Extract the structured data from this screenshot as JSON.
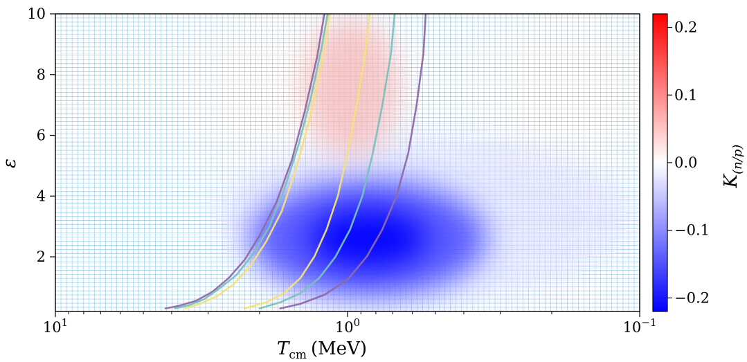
{
  "chart_data": {
    "type": "heatmap",
    "title": "",
    "xlabel": {
      "symbol": "T",
      "subscript": "cm",
      "unit": "(MeV)"
    },
    "ylabel": "ε",
    "x_scale": "log",
    "x_direction": "decreasing",
    "xlim": [
      10,
      0.1
    ],
    "ylim": [
      0.2,
      10
    ],
    "x_ticks": [
      {
        "value": 10,
        "base": "10",
        "exp": "1"
      },
      {
        "value": 1,
        "base": "10",
        "exp": "0"
      },
      {
        "value": 0.1,
        "base": "10",
        "exp": "−1"
      }
    ],
    "y_ticks": [
      {
        "value": 2,
        "label": "2"
      },
      {
        "value": 4,
        "label": "4"
      },
      {
        "value": 6,
        "label": "6"
      },
      {
        "value": 8,
        "label": "8"
      },
      {
        "value": 10,
        "label": "10"
      }
    ],
    "grid": true,
    "grid_color": "#8ec4e2",
    "colorbar": {
      "label": {
        "symbol": "K",
        "subscript": "(n/p)"
      },
      "range": [
        -0.22,
        0.22
      ],
      "colormap": "bwr",
      "ticks": [
        {
          "value": 0.2,
          "label": "0.2"
        },
        {
          "value": 0.1,
          "label": "0.1"
        },
        {
          "value": 0.0,
          "label": "0.0"
        },
        {
          "value": -0.1,
          "label": "−0.1"
        },
        {
          "value": -0.2,
          "label": "−0.2"
        }
      ]
    },
    "heatmap_features": [
      {
        "kind": "negative",
        "peak": -0.22,
        "center_T": 0.85,
        "center_eps": 2.6
      },
      {
        "kind": "positive",
        "peak": 0.07,
        "center_T": 0.97,
        "center_eps": 7.0
      }
    ],
    "series": [
      {
        "color": "#8e6aa8",
        "points": [
          [
            4.2,
            0.3
          ],
          [
            3.8,
            0.38
          ],
          [
            3.3,
            0.55
          ],
          [
            2.9,
            0.85
          ],
          [
            2.55,
            1.3
          ],
          [
            2.25,
            1.9
          ],
          [
            2.0,
            2.7
          ],
          [
            1.75,
            3.8
          ],
          [
            1.55,
            5.2
          ],
          [
            1.4,
            6.8
          ],
          [
            1.27,
            8.6
          ],
          [
            1.2,
            10
          ]
        ]
      },
      {
        "color": "#79c2bd",
        "points": [
          [
            3.9,
            0.3
          ],
          [
            3.5,
            0.4
          ],
          [
            3.1,
            0.6
          ],
          [
            2.75,
            0.95
          ],
          [
            2.4,
            1.4
          ],
          [
            2.1,
            2.1
          ],
          [
            1.85,
            3.0
          ],
          [
            1.65,
            4.2
          ],
          [
            1.47,
            5.7
          ],
          [
            1.33,
            7.3
          ],
          [
            1.22,
            9.0
          ],
          [
            1.17,
            10
          ]
        ]
      },
      {
        "color": "#f2e27a",
        "points": [
          [
            2.25,
            0.3
          ],
          [
            1.9,
            0.5
          ],
          [
            1.65,
            0.8
          ],
          [
            1.45,
            1.3
          ],
          [
            1.3,
            2.0
          ],
          [
            1.18,
            2.9
          ],
          [
            1.08,
            4.0
          ],
          [
            1.0,
            5.4
          ],
          [
            0.93,
            7.0
          ],
          [
            0.87,
            8.7
          ],
          [
            0.84,
            10
          ]
        ]
      },
      {
        "color": "#f2e27a",
        "points": [
          [
            3.6,
            0.3
          ],
          [
            3.2,
            0.45
          ],
          [
            2.8,
            0.7
          ],
          [
            2.45,
            1.1
          ],
          [
            2.15,
            1.7
          ],
          [
            1.9,
            2.5
          ],
          [
            1.68,
            3.5
          ],
          [
            1.5,
            4.9
          ],
          [
            1.35,
            6.5
          ],
          [
            1.23,
            8.3
          ],
          [
            1.15,
            10
          ]
        ]
      },
      {
        "color": "#79c2bd",
        "points": [
          [
            2.0,
            0.3
          ],
          [
            1.7,
            0.5
          ],
          [
            1.45,
            0.8
          ],
          [
            1.25,
            1.3
          ],
          [
            1.1,
            2.0
          ],
          [
            0.98,
            2.9
          ],
          [
            0.89,
            4.0
          ],
          [
            0.82,
            5.4
          ],
          [
            0.76,
            7.0
          ],
          [
            0.71,
            8.7
          ],
          [
            0.69,
            10
          ]
        ]
      },
      {
        "color": "#8e6aa8",
        "points": [
          [
            1.7,
            0.3
          ],
          [
            1.45,
            0.45
          ],
          [
            1.2,
            0.75
          ],
          [
            1.0,
            1.25
          ],
          [
            0.86,
            2.0
          ],
          [
            0.76,
            2.9
          ],
          [
            0.68,
            4.0
          ],
          [
            0.62,
            5.4
          ],
          [
            0.58,
            7.0
          ],
          [
            0.55,
            8.7
          ],
          [
            0.54,
            10
          ]
        ]
      }
    ]
  }
}
